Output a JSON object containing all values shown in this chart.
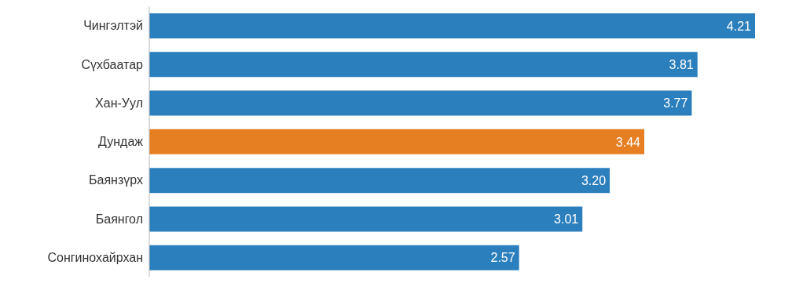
{
  "chart_data": {
    "type": "bar",
    "orientation": "horizontal",
    "categories": [
      "Чингэлтэй",
      "Сүхбаатар",
      "Хан-Уул",
      "Дундаж",
      "Баянзүрх",
      "Баянгол",
      "Сонгинохайрхан"
    ],
    "values": [
      4.21,
      3.81,
      3.77,
      3.44,
      3.2,
      3.01,
      2.57
    ],
    "colors": [
      "#2b7fbd",
      "#2b7fbd",
      "#2b7fbd",
      "#e67e22",
      "#2b7fbd",
      "#2b7fbd",
      "#2b7fbd"
    ],
    "value_labels": [
      "4.21",
      "3.81",
      "3.77",
      "3.44",
      "3.20",
      "3.01",
      "2.57"
    ],
    "grid": false,
    "legend": false
  }
}
